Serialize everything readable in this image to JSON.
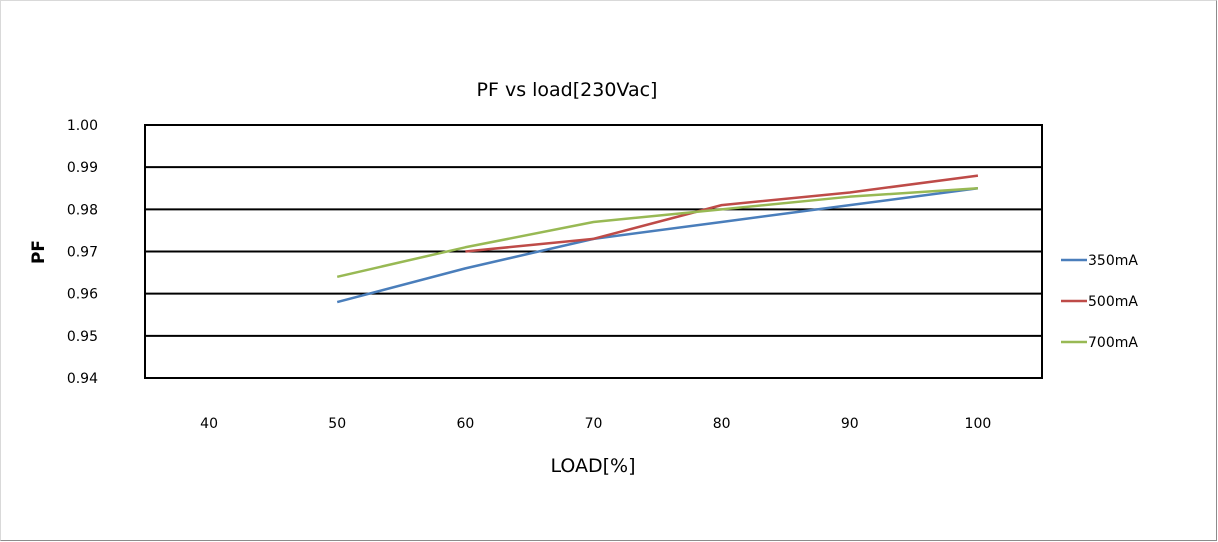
{
  "chart_data": {
    "type": "line",
    "title": "PF vs load[230Vac]",
    "xlabel": "LOAD[%]",
    "ylabel": "PF",
    "x_categories": [
      40,
      50,
      60,
      70,
      80,
      90,
      100
    ],
    "ylim": [
      0.94,
      1.0
    ],
    "yticks": [
      "0.94",
      "0.95",
      "0.96",
      "0.97",
      "0.98",
      "0.99",
      "1.00"
    ],
    "grid": "horizontal",
    "legend_position": "right",
    "series": [
      {
        "name": "350mA",
        "color": "#4a7ebb",
        "x": [
          50,
          60,
          70,
          80,
          90,
          100
        ],
        "y": [
          0.958,
          0.966,
          0.973,
          0.977,
          0.981,
          0.985
        ]
      },
      {
        "name": "500mA",
        "color": "#be4b48",
        "x": [
          60,
          70,
          80,
          90,
          100
        ],
        "y": [
          0.97,
          0.973,
          0.981,
          0.984,
          0.988
        ]
      },
      {
        "name": "700mA",
        "color": "#98b954",
        "x": [
          50,
          60,
          70,
          80,
          90,
          100
        ],
        "y": [
          0.964,
          0.971,
          0.977,
          0.98,
          0.983,
          0.985
        ]
      }
    ]
  }
}
